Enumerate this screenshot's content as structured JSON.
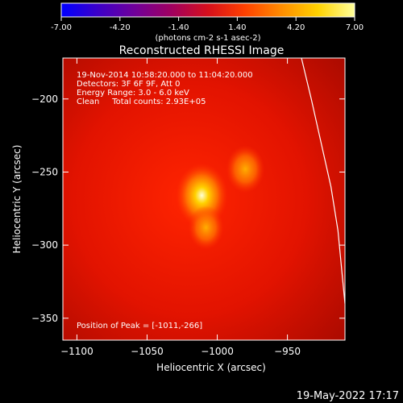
{
  "colorbar": {
    "ticks": [
      "-7.00",
      "-4.20",
      "-1.40",
      "1.40",
      "4.20",
      "7.00"
    ],
    "min": -7.0,
    "max": 7.0,
    "unit_label": "(photons cm-2 s-1 asec-2)",
    "gradient": [
      "#0000ff",
      "#3c00c8",
      "#70009a",
      "#a00060",
      "#d60f1c",
      "#ff4000",
      "#ff8c00",
      "#ffd200",
      "#ffff9a"
    ]
  },
  "chart_data": {
    "type": "heatmap",
    "title": "Reconstructed RHESSI Image",
    "xlabel": "Heliocentric X (arcsec)",
    "ylabel": "Heliocentric Y (arcsec)",
    "xlim": [
      -1110,
      -909
    ],
    "ylim": [
      -365,
      -172
    ],
    "x_ticks": [
      -1100,
      -1050,
      -1000,
      -950
    ],
    "y_ticks": [
      -200,
      -250,
      -300,
      -350
    ],
    "x_tick_labels": [
      "−1100",
      "−1050",
      "−1000",
      "−950"
    ],
    "y_tick_labels": [
      "−200",
      "−250",
      "−300",
      "−350"
    ],
    "sources": [
      {
        "x": -1011,
        "y": -266,
        "relative_intensity": 1.0
      },
      {
        "x": -980,
        "y": -248,
        "relative_intensity": 0.55
      },
      {
        "x": -1008,
        "y": -288,
        "relative_intensity": 0.45
      }
    ],
    "limb_curve": [
      [
        -940,
        -172
      ],
      [
        -933,
        -200
      ],
      [
        -926,
        -230
      ],
      [
        -919,
        -260
      ],
      [
        -914,
        -290
      ],
      [
        -911,
        -320
      ],
      [
        -909,
        -340
      ]
    ],
    "annotations": [
      "19-Nov-2014 10:58:20.000 to 11:04:20.000",
      "Detectors: 3F 6F 9F, Att 0",
      "Energy Range: 3.0 - 6.0 keV",
      "Clean     Total counts: 2.93E+05"
    ],
    "peak_label": "Position of Peak = [-1011,-266]"
  },
  "timestamp": "19-May-2022 17:17"
}
